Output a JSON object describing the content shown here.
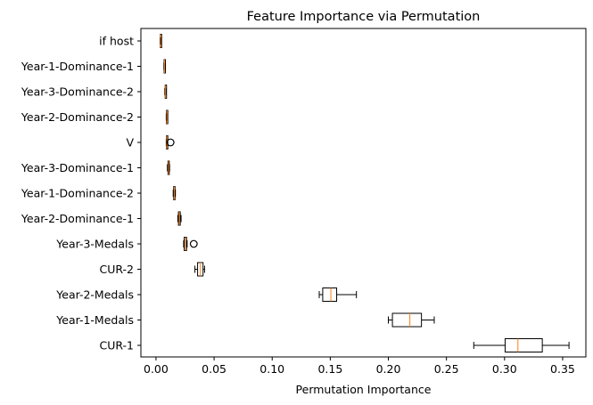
{
  "chart_data": {
    "type": "boxplot",
    "orientation": "horizontal",
    "title": "Feature Importance via Permutation",
    "xlabel": "Permutation Importance",
    "ylabel": "",
    "xlim": [
      -0.013,
      0.37
    ],
    "xticks": [
      0.0,
      0.05,
      0.1,
      0.15,
      0.2,
      0.25,
      0.3,
      0.35
    ],
    "xtick_labels": [
      "0.00",
      "0.05",
      "0.10",
      "0.15",
      "0.20",
      "0.25",
      "0.30",
      "0.35"
    ],
    "grid": false,
    "colors": {
      "box": "#000000",
      "median": "#ff7f0e",
      "flier": "#000000"
    },
    "categories": [
      "if host",
      "Year-1-Dominance-1",
      "Year-3-Dominance-2",
      "Year-2-Dominance-2",
      "V",
      "Year-3-Dominance-1",
      "Year-1-Dominance-2",
      "Year-2-Dominance-1",
      "Year-3-Medals",
      "CUR-2",
      "Year-2-Medals",
      "Year-1-Medals",
      "CUR-1"
    ],
    "boxes": [
      {
        "label": "if host",
        "whislo": 0.0035,
        "q1": 0.0037,
        "med": 0.0039,
        "q3": 0.0041,
        "whishi": 0.0043,
        "fliers": []
      },
      {
        "label": "Year-1-Dominance-1",
        "whislo": 0.0068,
        "q1": 0.007,
        "med": 0.0073,
        "q3": 0.0076,
        "whishi": 0.0078,
        "fliers": []
      },
      {
        "label": "Year-3-Dominance-2",
        "whislo": 0.0076,
        "q1": 0.0079,
        "med": 0.0082,
        "q3": 0.0085,
        "whishi": 0.0088,
        "fliers": []
      },
      {
        "label": "Year-2-Dominance-2",
        "whislo": 0.0088,
        "q1": 0.009,
        "med": 0.0094,
        "q3": 0.0097,
        "whishi": 0.0099,
        "fliers": []
      },
      {
        "label": "V",
        "whislo": 0.0088,
        "q1": 0.009,
        "med": 0.0093,
        "q3": 0.0096,
        "whishi": 0.0099,
        "fliers": [
          0.0125
        ]
      },
      {
        "label": "Year-3-Dominance-1",
        "whislo": 0.0098,
        "q1": 0.0103,
        "med": 0.0108,
        "q3": 0.0113,
        "whishi": 0.0117,
        "fliers": []
      },
      {
        "label": "Year-1-Dominance-2",
        "whislo": 0.0148,
        "q1": 0.0152,
        "med": 0.0157,
        "q3": 0.0162,
        "whishi": 0.0167,
        "fliers": []
      },
      {
        "label": "Year-2-Dominance-1",
        "whislo": 0.0188,
        "q1": 0.0193,
        "med": 0.0201,
        "q3": 0.0209,
        "whishi": 0.0216,
        "fliers": []
      },
      {
        "label": "Year-3-Medals",
        "whislo": 0.0238,
        "q1": 0.0243,
        "med": 0.0254,
        "q3": 0.0263,
        "whishi": 0.0268,
        "fliers": [
          0.0325
        ]
      },
      {
        "label": "CUR-2",
        "whislo": 0.0335,
        "q1": 0.0358,
        "med": 0.0382,
        "q3": 0.0405,
        "whishi": 0.0418,
        "fliers": []
      },
      {
        "label": "Year-2-Medals",
        "whislo": 0.1405,
        "q1": 0.1435,
        "med": 0.1505,
        "q3": 0.1555,
        "whishi": 0.1725,
        "fliers": []
      },
      {
        "label": "Year-1-Medals",
        "whislo": 0.2,
        "q1": 0.2035,
        "med": 0.2185,
        "q3": 0.2285,
        "whishi": 0.2395,
        "fliers": []
      },
      {
        "label": "CUR-1",
        "whislo": 0.2735,
        "q1": 0.3005,
        "med": 0.3115,
        "q3": 0.3325,
        "whishi": 0.3555,
        "fliers": []
      }
    ]
  }
}
